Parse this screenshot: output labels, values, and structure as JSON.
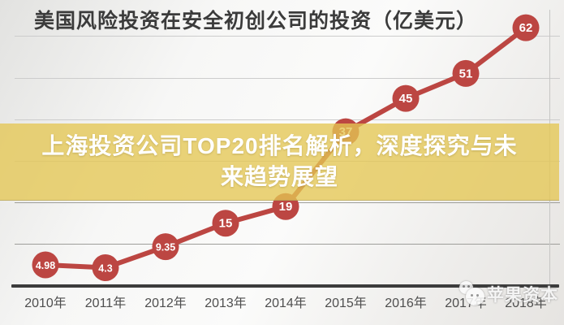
{
  "banner": {
    "full_text": "上海投资公司TOP20排名解析，深度探究与未来趋势展望",
    "lines": [
      "上海投资公司TOP20排名解析，深度探究与未",
      "来趋势展望"
    ]
  },
  "watermark": {
    "name": "苹果资本"
  },
  "chart_data": {
    "type": "line",
    "title": "美国风险投资在安全初创公司的投资（亿美元）",
    "categories": [
      "2010年",
      "2011年",
      "2012年",
      "2013年",
      "2014年",
      "2015年",
      "2016年",
      "2017年",
      "2018年"
    ],
    "values": [
      4.98,
      4.3,
      9.35,
      15,
      19,
      37,
      45,
      51,
      62
    ],
    "point_labels": [
      "4.98",
      "4.3",
      "9.35",
      "15",
      "19",
      "37",
      "45",
      "51",
      "62"
    ],
    "xlabel": "",
    "ylabel": "",
    "ylim": [
      0,
      65
    ],
    "grid": "horizontal",
    "grid_interval": 10,
    "legend": "none",
    "colors": {
      "line": "#bc4642",
      "marker": "#bc4642",
      "point_label": "#ffffff",
      "grid_upper": "#cccccc",
      "grid_lower": "#9e9e9a",
      "axis": "#3c3c3c",
      "banner": "rgba(228,198,83,0.78)",
      "title_text": "#3b3b3b"
    }
  }
}
